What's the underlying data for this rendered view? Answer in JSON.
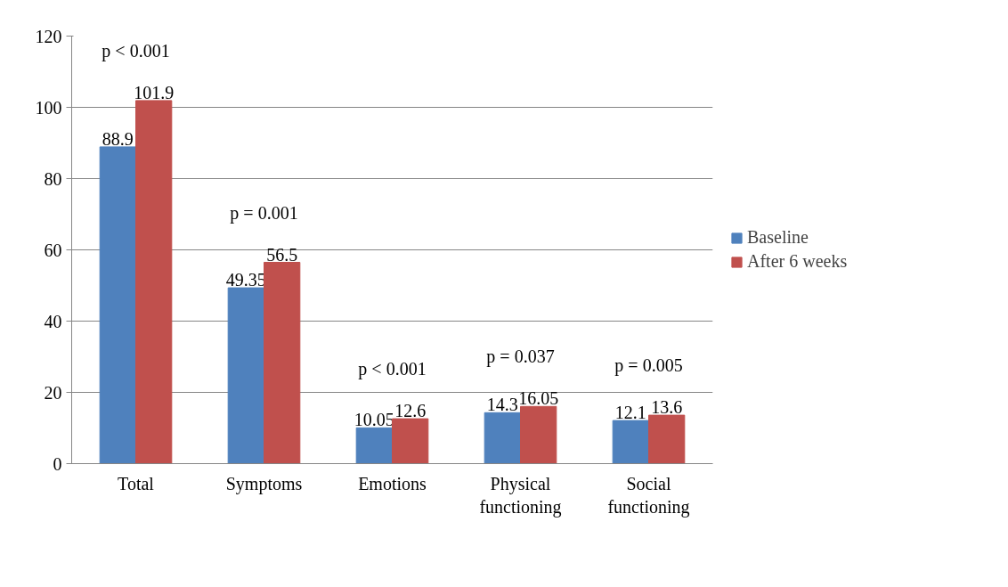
{
  "chart_data": {
    "type": "bar",
    "categories": [
      "Total",
      "Symptoms",
      "Emotions",
      "Physical functioning",
      "Social functioning"
    ],
    "series": [
      {
        "name": "Baseline",
        "color": "#4f81bd",
        "values": [
          88.9,
          49.35,
          10.05,
          14.3,
          12.1
        ]
      },
      {
        "name": "After 6 weeks",
        "color": "#c0504d",
        "values": [
          101.9,
          56.5,
          12.6,
          16.05,
          13.6
        ]
      }
    ],
    "ylim": [
      0,
      120
    ],
    "yticks": [
      0,
      20,
      40,
      60,
      80,
      100,
      120
    ],
    "grid": "y",
    "legend": "right",
    "data_labels": true,
    "annotations": [
      "p < 0.001",
      "p = 0.001",
      "p < 0.001",
      "p = 0.037",
      "p = 0.005"
    ]
  }
}
